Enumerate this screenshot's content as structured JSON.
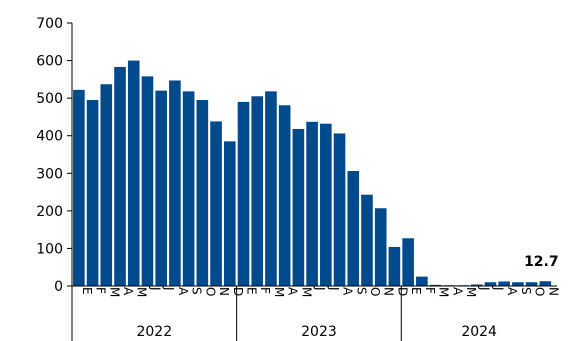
{
  "chart_data": {
    "type": "bar",
    "color": "#004A8D",
    "ylim": [
      0,
      700
    ],
    "yticks": [
      0,
      100,
      200,
      300,
      400,
      500,
      600,
      700
    ],
    "grid": false,
    "years": [
      {
        "label": "2022",
        "months": [
          "E",
          "F",
          "M",
          "A",
          "M",
          "J",
          "J",
          "A",
          "S",
          "O",
          "N",
          "D"
        ]
      },
      {
        "label": "2023",
        "months": [
          "E",
          "F",
          "M",
          "A",
          "M",
          "J",
          "J",
          "A",
          "S",
          "O",
          "N",
          "D"
        ]
      },
      {
        "label": "2024",
        "months": [
          "E",
          "F",
          "M",
          "A",
          "M",
          "J",
          "J",
          "A",
          "S",
          "O",
          "N"
        ]
      }
    ],
    "values": [
      522,
      495,
      537,
      583,
      600,
      558,
      520,
      547,
      518,
      495,
      438,
      385,
      490,
      505,
      518,
      481,
      418,
      437,
      432,
      406,
      306,
      243,
      207,
      104,
      127,
      25,
      3,
      2,
      2,
      4,
      10,
      12,
      10,
      10,
      12.7
    ],
    "annotation": {
      "text": "12.7",
      "index": 34
    }
  }
}
